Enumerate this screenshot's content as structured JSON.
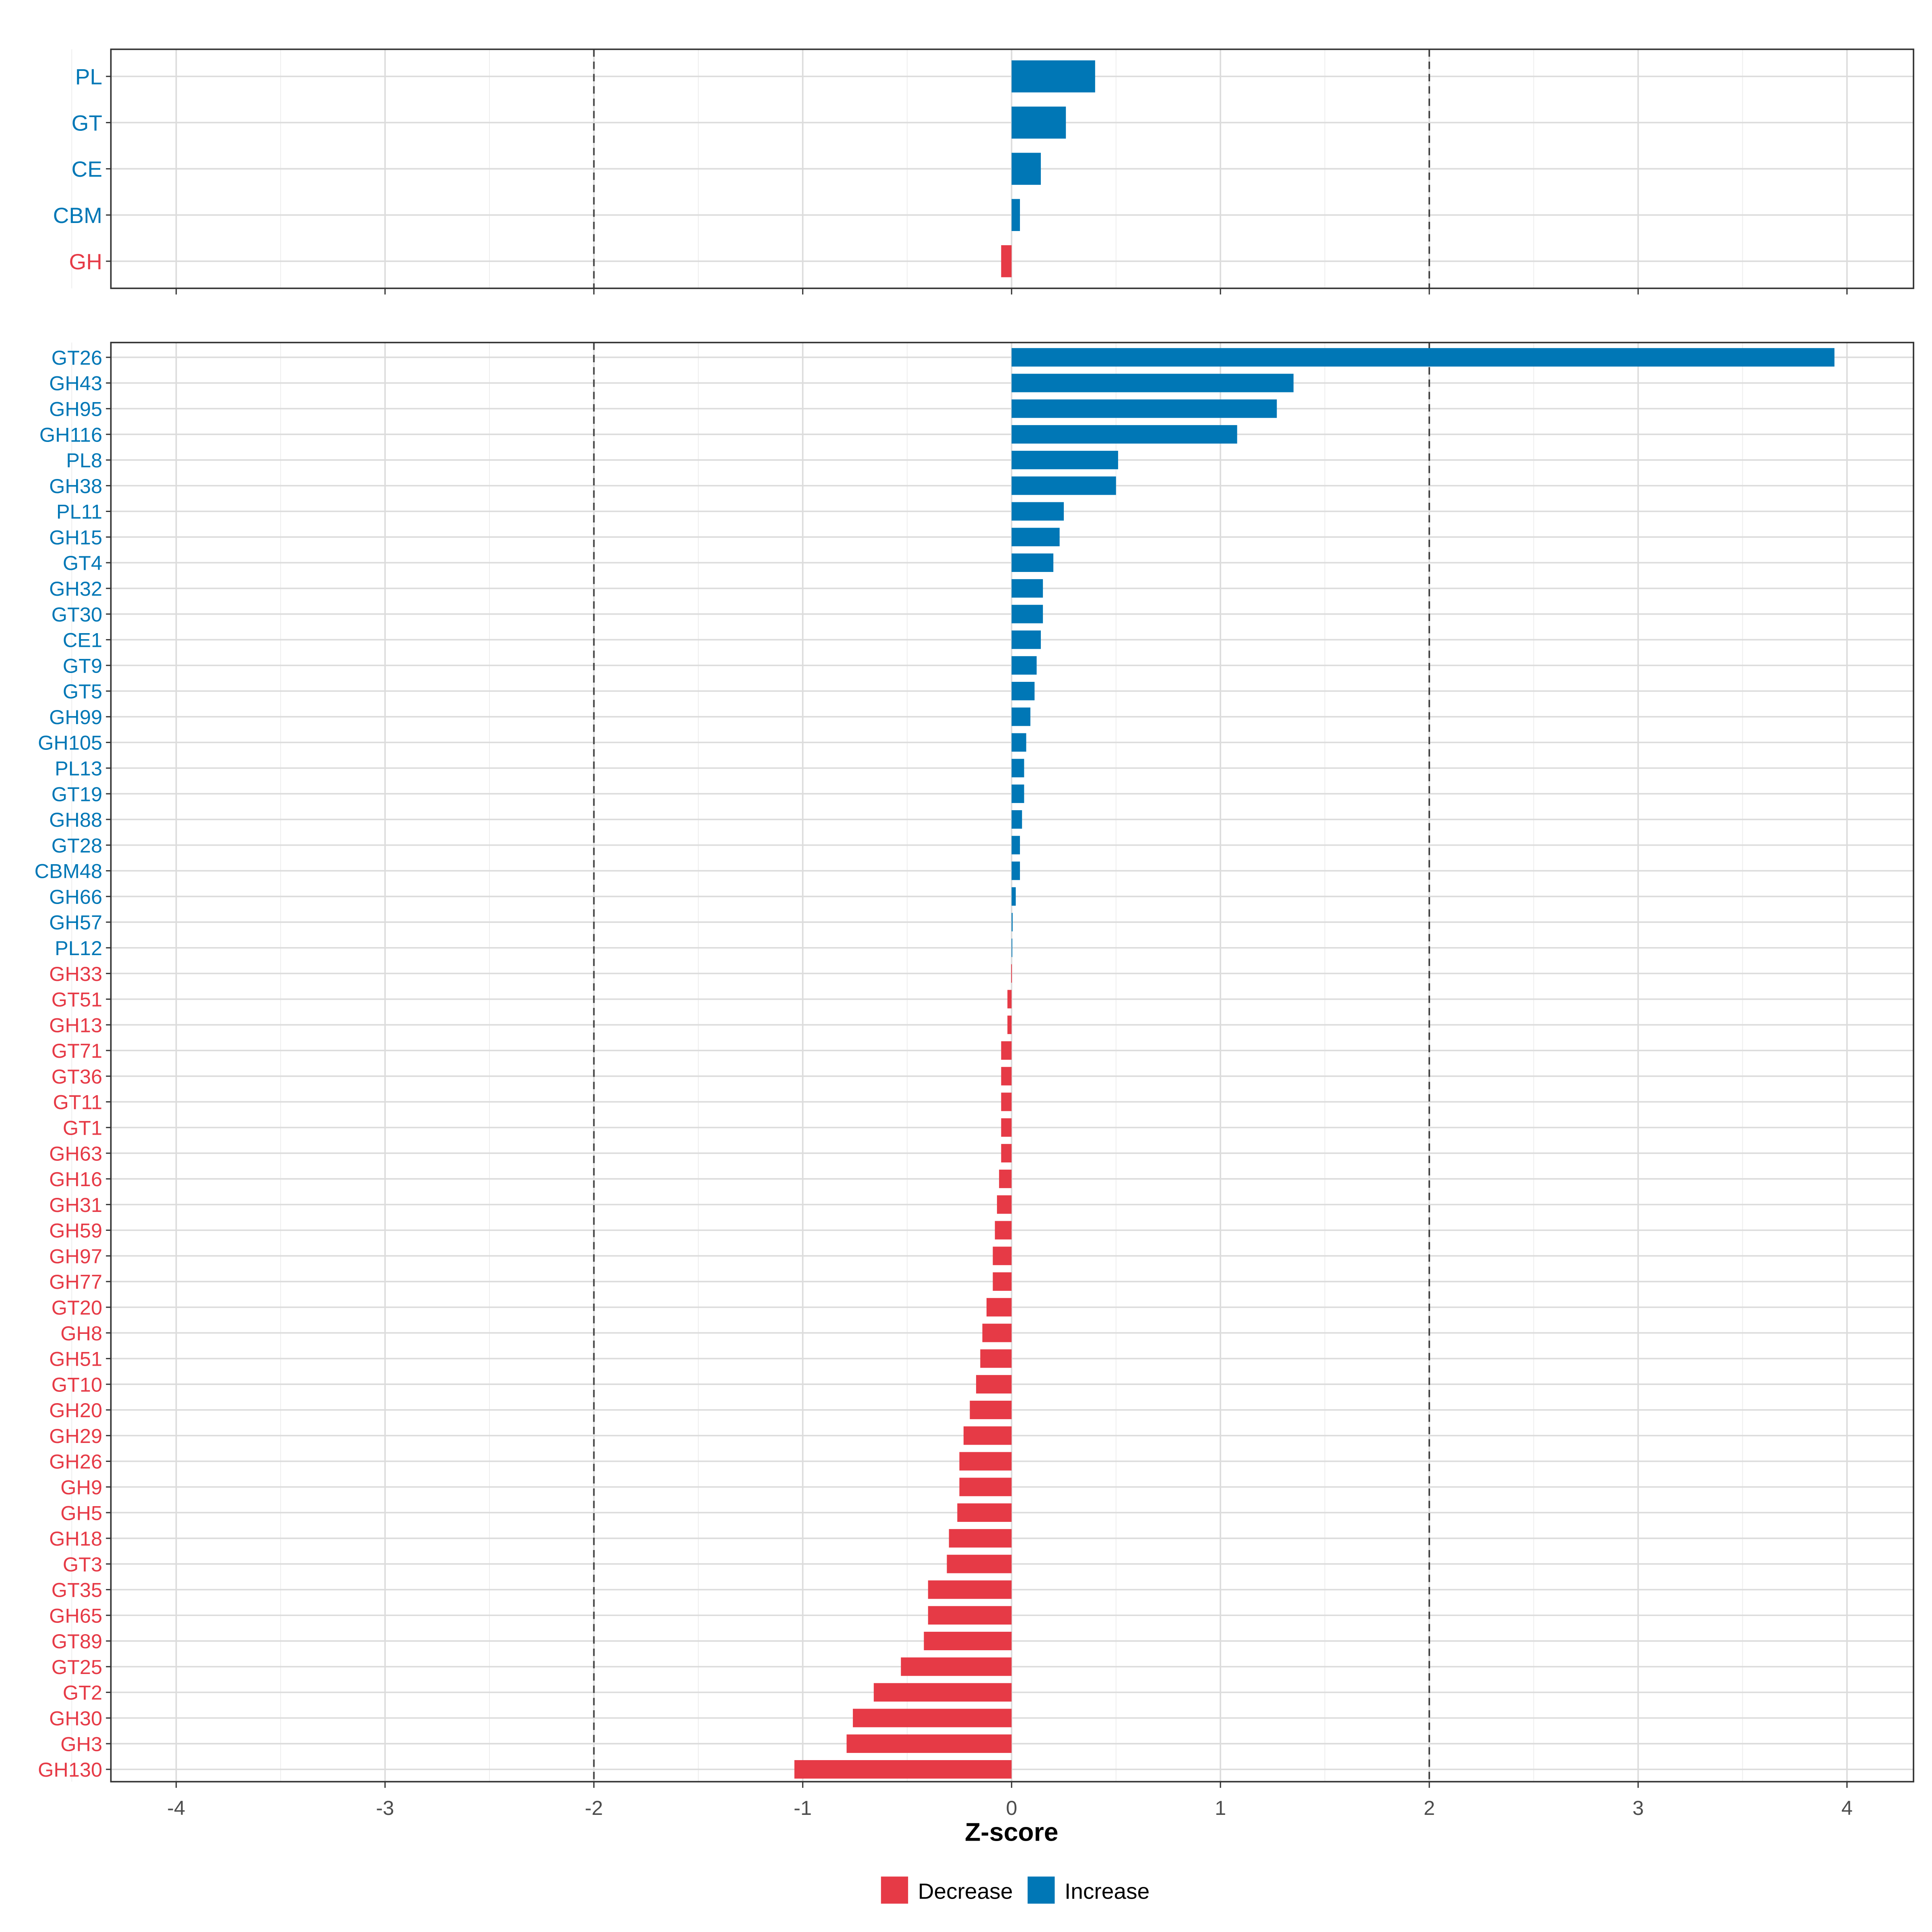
{
  "chart_data": [
    {
      "type": "bar",
      "orientation": "horizontal",
      "title": "",
      "xlabel": "Z-score",
      "ylabel": "",
      "xlim": [
        -4.3,
        4.3
      ],
      "xticks": [
        -4,
        -3,
        -2,
        -1,
        0,
        1,
        2,
        3,
        4
      ],
      "reference_lines": [
        -2,
        2
      ],
      "categories": [
        "PL",
        "GT",
        "CE",
        "CBM",
        "GH"
      ],
      "values": [
        0.4,
        0.26,
        0.14,
        0.04,
        -0.05
      ]
    },
    {
      "type": "bar",
      "orientation": "horizontal",
      "title": "",
      "xlabel": "Z-score",
      "ylabel": "",
      "xlim": [
        -4.3,
        4.3
      ],
      "xticks": [
        -4,
        -3,
        -2,
        -1,
        0,
        1,
        2,
        3,
        4
      ],
      "reference_lines": [
        -2,
        2
      ],
      "categories": [
        "GT26",
        "GH43",
        "GH95",
        "GH116",
        "PL8",
        "GH38",
        "PL11",
        "GH15",
        "GT4",
        "GH32",
        "GT30",
        "CE1",
        "GT9",
        "GT5",
        "GH99",
        "GH105",
        "PL13",
        "GT19",
        "GH88",
        "GT28",
        "CBM48",
        "GH66",
        "GH57",
        "PL12",
        "GH33",
        "GT51",
        "GH13",
        "GT71",
        "GT36",
        "GT11",
        "GT1",
        "GH63",
        "GH16",
        "GH31",
        "GH59",
        "GH97",
        "GH77",
        "GT20",
        "GH8",
        "GH51",
        "GT10",
        "GH20",
        "GH29",
        "GH26",
        "GH9",
        "GH5",
        "GH18",
        "GT3",
        "GT35",
        "GH65",
        "GT89",
        "GT25",
        "GT2",
        "GH30",
        "GH3",
        "GH130"
      ],
      "values": [
        3.94,
        1.35,
        1.27,
        1.08,
        0.51,
        0.5,
        0.25,
        0.23,
        0.2,
        0.15,
        0.15,
        0.14,
        0.12,
        0.11,
        0.09,
        0.07,
        0.06,
        0.06,
        0.05,
        0.04,
        0.04,
        0.02,
        0.005,
        0.002,
        -0.002,
        -0.02,
        -0.02,
        -0.05,
        -0.05,
        -0.05,
        -0.05,
        -0.05,
        -0.06,
        -0.07,
        -0.08,
        -0.09,
        -0.09,
        -0.12,
        -0.14,
        -0.15,
        -0.17,
        -0.2,
        -0.23,
        -0.25,
        -0.25,
        -0.26,
        -0.3,
        -0.31,
        -0.4,
        -0.4,
        -0.42,
        -0.53,
        -0.66,
        -0.76,
        -0.79,
        -1.04
      ]
    }
  ],
  "legend": {
    "placement": "bottom",
    "items": [
      {
        "label": "Decrease",
        "color": "#E63A46"
      },
      {
        "label": "Increase",
        "color": "#0077B6"
      }
    ]
  },
  "colors": {
    "increase": "#0077B6",
    "decrease": "#E63A46"
  }
}
